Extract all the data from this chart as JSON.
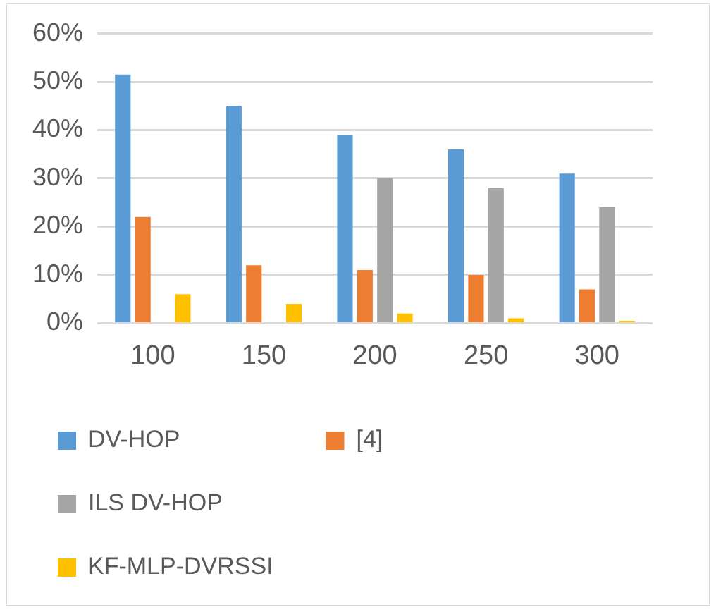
{
  "chart_data": {
    "type": "bar",
    "categories": [
      "100",
      "150",
      "200",
      "250",
      "300"
    ],
    "series": [
      {
        "name": "DV-HOP",
        "color": "#5b9bd5",
        "values": [
          51.5,
          45,
          39,
          36,
          31
        ]
      },
      {
        "name": "[4]",
        "color": "#ed7d31",
        "values": [
          22,
          12,
          11,
          10,
          7
        ]
      },
      {
        "name": "ILS DV-HOP",
        "color": "#a5a5a5",
        "values": [
          null,
          null,
          30,
          28,
          24
        ]
      },
      {
        "name": "KF-MLP-DVRSSI",
        "color": "#ffc000",
        "values": [
          6,
          4,
          2,
          1,
          0.5
        ]
      }
    ],
    "ylim": [
      0,
      60
    ],
    "yticks": [
      {
        "value": 0,
        "label": "0%"
      },
      {
        "value": 10,
        "label": "10%"
      },
      {
        "value": 20,
        "label": "20%"
      },
      {
        "value": 30,
        "label": "30%"
      },
      {
        "value": 40,
        "label": "40%"
      },
      {
        "value": 50,
        "label": "50%"
      },
      {
        "value": 60,
        "label": "60%"
      }
    ],
    "grid": "y",
    "legend": "bottom"
  }
}
